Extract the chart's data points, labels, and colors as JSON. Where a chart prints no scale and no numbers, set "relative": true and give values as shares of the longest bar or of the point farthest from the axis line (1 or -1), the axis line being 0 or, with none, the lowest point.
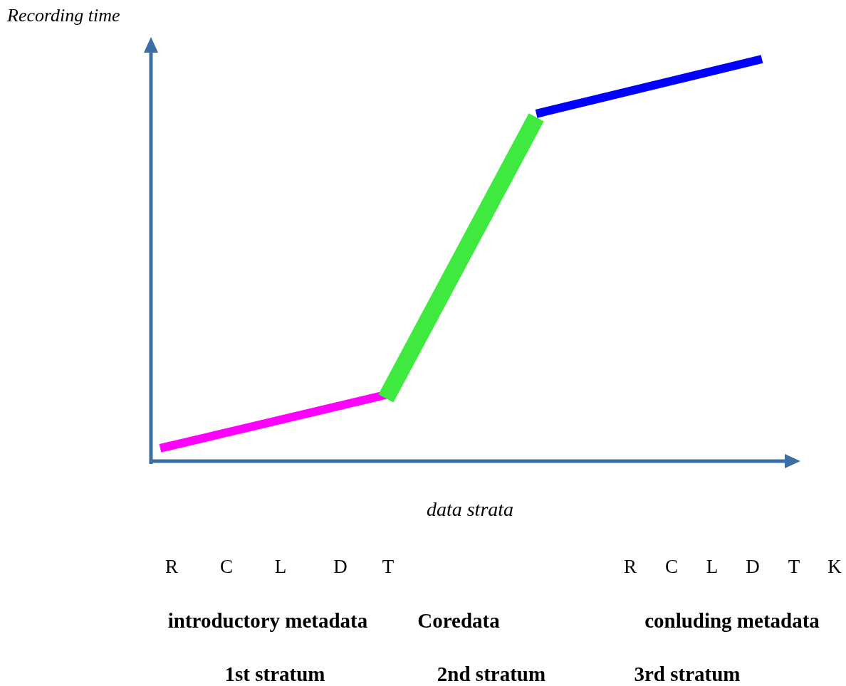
{
  "chart_data": {
    "type": "line",
    "relative": true,
    "ylabel": "Recording time",
    "xlabel": "data strata",
    "marker": "none",
    "line_style": "solid",
    "categories": [
      null,
      null,
      null,
      null,
      null,
      null,
      null,
      null,
      null
    ],
    "series": [
      {
        "color": "#ff00ff",
        "values": [
          0.032,
          null,
          null,
          0.165,
          null,
          null,
          null,
          null,
          null
        ]
      },
      {
        "color": "#3fe93f",
        "values": [
          null,
          null,
          null,
          0.156,
          null,
          0.855,
          null,
          null,
          null
        ]
      },
      {
        "color": "#0000ff",
        "values": [
          null,
          null,
          null,
          null,
          null,
          0.864,
          null,
          null,
          1.0
        ]
      }
    ],
    "annotations": [
      "R",
      "C",
      "L",
      "D",
      "T",
      "R",
      "C",
      "L",
      "D",
      "T",
      "K",
      "introductory metadata",
      "Coredata",
      "conluding metadata",
      "1st stratum",
      "2nd stratum",
      "3rd stratum"
    ]
  }
}
